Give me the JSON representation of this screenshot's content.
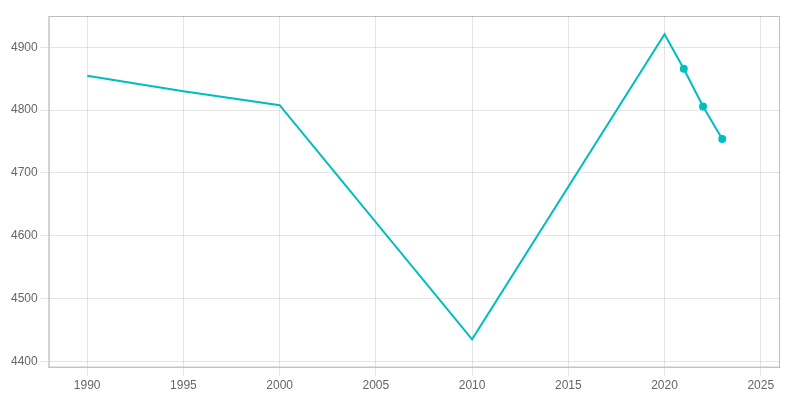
{
  "chart_data": {
    "type": "line",
    "x": [
      1990,
      1995,
      2000,
      2010,
      2020,
      2021,
      2022,
      2023
    ],
    "values": [
      4855,
      4830,
      4808,
      4435,
      4921,
      4866,
      4806,
      4754
    ],
    "color": "#00BEBE",
    "marker": "o",
    "marker_x": [
      2021,
      2022,
      2023
    ],
    "xlim": [
      1988,
      2026
    ],
    "xticks": [
      1990,
      1995,
      2000,
      2005,
      2010,
      2015,
      2020,
      2025
    ],
    "ylim": [
      4390,
      4950
    ],
    "yticks": [
      4400,
      4500,
      4600,
      4700,
      4800,
      4900
    ],
    "grid": true
  }
}
